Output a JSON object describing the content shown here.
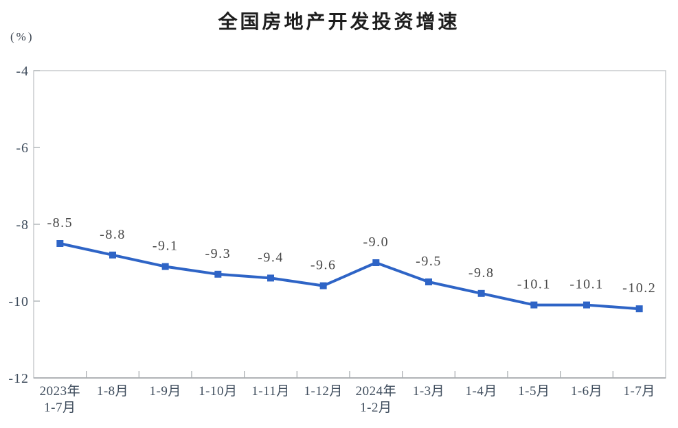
{
  "chart_data": {
    "type": "line",
    "title": "全国房地产开发投资增速",
    "ylabel_unit": "(%)",
    "categories": [
      "2023年\n1-7月",
      "1-8月",
      "1-9月",
      "1-10月",
      "1-11月",
      "1-12月",
      "2024年\n1-2月",
      "1-3月",
      "1-4月",
      "1-5月",
      "1-6月",
      "1-7月"
    ],
    "values": [
      -8.5,
      -8.8,
      -9.1,
      -9.3,
      -9.4,
      -9.6,
      -9.0,
      -9.5,
      -9.8,
      -10.1,
      -10.1,
      -10.2
    ],
    "data_labels": [
      "-8.5",
      "-8.8",
      "-9.1",
      "-9.3",
      "-9.4",
      "-9.6",
      "-9.0",
      "-9.5",
      "-9.8",
      "-10.1",
      "-10.1",
      "-10.2"
    ],
    "ylim": [
      -12,
      -4
    ],
    "yticks": [
      -4,
      -6,
      -8,
      -10,
      -12
    ],
    "grid": false,
    "legend": "none",
    "marker": "square",
    "colors": {
      "line": "#2e64c6",
      "marker": "#2e64c6",
      "plot_border": "#bfc3c6",
      "bottom_axis": "#9b9fa3",
      "tick": "#a8adb1",
      "axis_text": "#3e4c5c",
      "data_label_text": "#474747",
      "title_text": "#1e1e1e"
    }
  }
}
